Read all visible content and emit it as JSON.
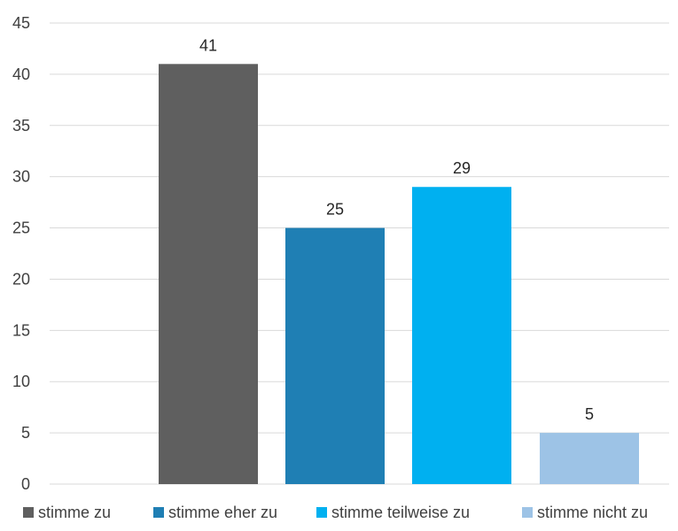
{
  "chart_data": {
    "type": "bar",
    "categories": [
      "stimme zu",
      "stimme eher zu",
      "stimme teilweise zu",
      "stimme nicht zu"
    ],
    "values": [
      41,
      25,
      29,
      5
    ],
    "colors": [
      "#5f5f5f",
      "#1f7fb4",
      "#00b0f0",
      "#9dc3e6"
    ],
    "ylim": [
      0,
      45
    ],
    "yticks": [
      0,
      5,
      10,
      15,
      20,
      25,
      30,
      35,
      40,
      45
    ],
    "grid": true,
    "legend": {
      "position": "bottom",
      "entries": [
        "stimme zu",
        "stimme eher zu",
        "stimme teilweise zu",
        "stimme nicht zu"
      ]
    },
    "data_labels": [
      "41",
      "25",
      "29",
      "5"
    ]
  }
}
